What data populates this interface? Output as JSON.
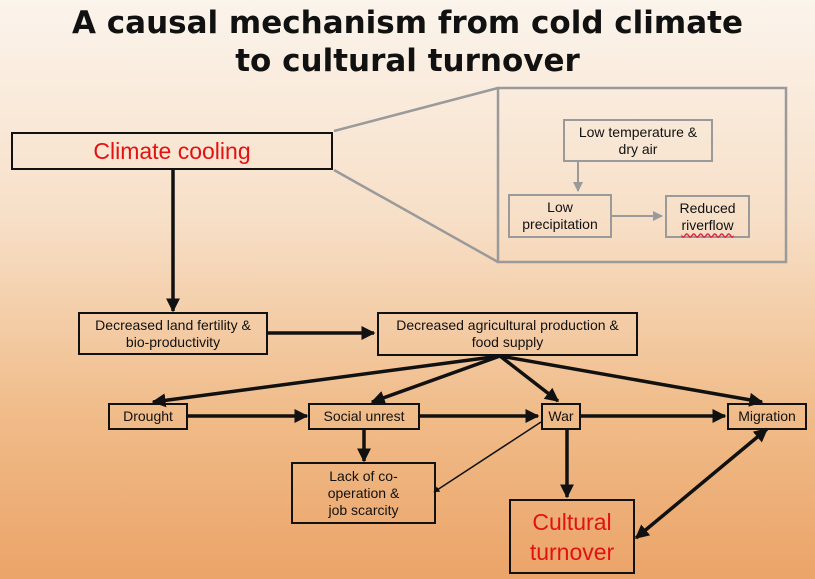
{
  "title": {
    "line1": "A causal mechanism from cold climate",
    "line2": "to cultural turnover"
  },
  "nodes": {
    "climate_cooling": "Climate cooling",
    "low_temp": {
      "line1": "Low temperature &",
      "line2": "dry air"
    },
    "low_precip": {
      "line1": "Low",
      "line2": "precipitation"
    },
    "reduced_riverflow": {
      "line1": "Reduced",
      "line2": "riverflow"
    },
    "decreased_fertility": {
      "line1": "Decreased land fertility &",
      "line2": "bio-productivity"
    },
    "decreased_agri": {
      "line1": "Decreased agricultural production &",
      "line2": "food supply"
    },
    "drought": "Drought",
    "social_unrest": "Social unrest",
    "war": "War",
    "migration": "Migration",
    "lack_coop": {
      "line1": "Lack of co-",
      "line2": "operation &",
      "line3": "job scarcity"
    },
    "cultural_turnover": {
      "line1": "Cultural",
      "line2": "turnover"
    }
  },
  "colors": {
    "emphasis_text": "#e31212",
    "zoom_frame": "#9a9a9a",
    "arrow": "#111111"
  }
}
